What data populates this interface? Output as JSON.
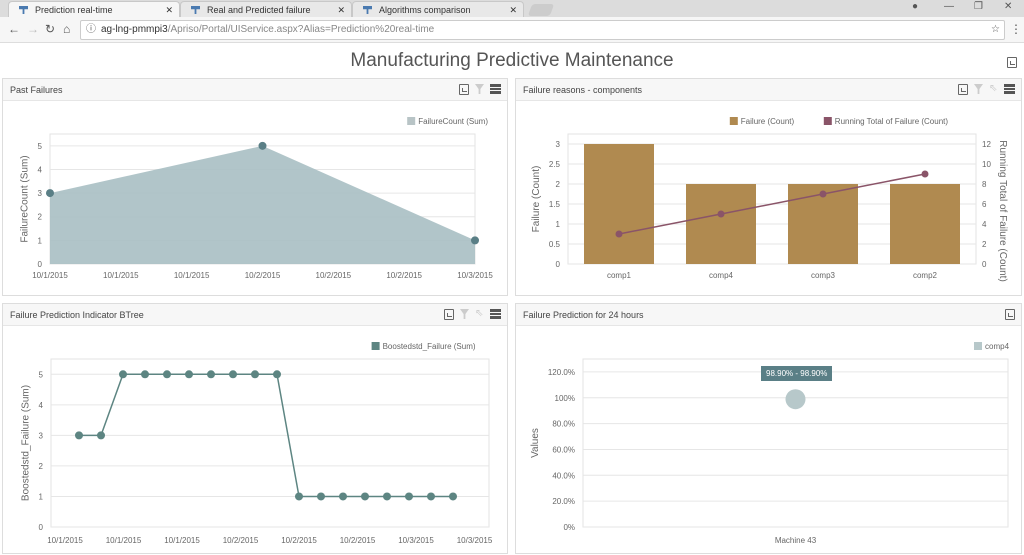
{
  "browser": {
    "tabs": [
      {
        "label": "Prediction real-time",
        "active": true
      },
      {
        "label": "Real and Predicted failure"
      },
      {
        "label": "Algorithms comparison"
      }
    ],
    "url_host": "ag-lng-pmmpi3",
    "url_path": "/Apriso/Portal/UIService.aspx?Alias=Prediction%20real-time"
  },
  "page": {
    "title": "Manufacturing Predictive Maintenance"
  },
  "colors": {
    "area": "#a9bfc3",
    "area_point": "#5a7f86",
    "bar": "#b08a50",
    "running": "#8a5468",
    "line": "#5d8582",
    "bubble": "#b7c8ca",
    "tooltip": "#5a7f86"
  },
  "chart_data": [
    {
      "type": "area",
      "panel_title": "Past Failures",
      "legend": [
        "FailureCount (Sum)"
      ],
      "ylabel": "FailureCount (Sum)",
      "ylim": [
        0,
        5.5
      ],
      "yticks": [
        0,
        1,
        2,
        3,
        4,
        5
      ],
      "x_tick_labels": [
        "10/1/2015",
        "10/1/2015",
        "10/1/2015",
        "10/2/2015",
        "10/2/2015",
        "10/2/2015",
        "10/3/2015"
      ],
      "points": [
        {
          "x": 0,
          "y": 3
        },
        {
          "x": 3,
          "y": 5
        },
        {
          "x": 6,
          "y": 1
        }
      ]
    },
    {
      "type": "bar",
      "panel_title": "Failure reasons - components",
      "legend": [
        "Failure (Count)",
        "Running Total of Failure (Count)"
      ],
      "ylabel": "Failure (Count)",
      "y2label": "Running Total of Failure (Count)",
      "ylim": [
        0,
        3.25
      ],
      "y2lim": [
        0,
        13
      ],
      "yticks": [
        "0",
        "0.5",
        "1",
        "1.5",
        "2",
        "2.5",
        "3"
      ],
      "y2ticks": [
        0,
        2,
        4,
        6,
        8,
        10,
        12
      ],
      "categories": [
        "comp1",
        "comp4",
        "comp3",
        "comp2"
      ],
      "series": [
        {
          "name": "Failure (Count)",
          "values": [
            3,
            2,
            2,
            2
          ]
        },
        {
          "name": "Running Total of Failure (Count)",
          "values": [
            3,
            5,
            7,
            9
          ]
        }
      ]
    },
    {
      "type": "line",
      "panel_title": "Failure Prediction Indicator BTree",
      "legend": [
        "Boostedstd_Failure (Sum)"
      ],
      "ylabel": "Boostedstd_Failure (Sum)",
      "ylim": [
        0,
        5.5
      ],
      "yticks": [
        0,
        1,
        2,
        3,
        4,
        5
      ],
      "x_tick_labels": [
        "10/1/2015",
        "10/1/2015",
        "10/1/2015",
        "10/2/2015",
        "10/2/2015",
        "10/2/2015",
        "10/3/2015",
        "10/3/2015"
      ],
      "values": [
        3,
        3,
        5,
        5,
        5,
        5,
        5,
        5,
        5,
        5,
        1,
        1,
        1,
        1,
        1,
        1,
        1,
        1
      ]
    },
    {
      "type": "scatter",
      "panel_title": "Failure Prediction for 24 hours",
      "legend": [
        "comp4"
      ],
      "ylabel": "Values",
      "ylim": [
        0,
        1.3
      ],
      "yticks": [
        "0%",
        "20.0%",
        "40.0%",
        "60.0%",
        "80.0%",
        "100%",
        "120.0%"
      ],
      "categories": [
        "Machine 43"
      ],
      "points": [
        {
          "x": "Machine 43",
          "y": 0.989
        }
      ],
      "tooltip": "98.90% - 98.90%"
    }
  ]
}
